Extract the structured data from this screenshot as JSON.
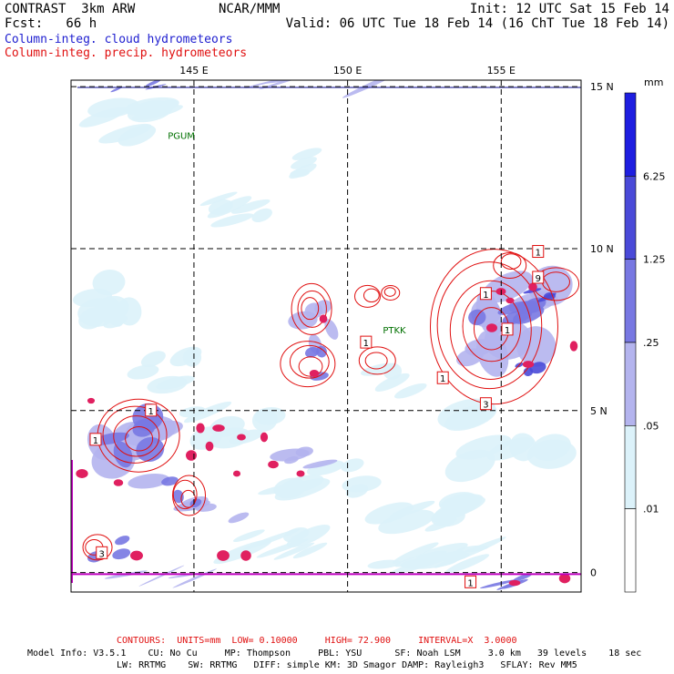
{
  "header": {
    "left_line1": "CONTRAST  3km ARW",
    "center_line1": "NCAR/MMM",
    "right_line1": "Init: 12 UTC Sat 15 Feb 14",
    "left_line2": "Fcst:   66 h",
    "right_line2": "Valid: 06 UTC Tue 18 Feb 14 (16 ChT Tue 18 Feb 14)",
    "field1": "Column-integ. cloud hydrometeors",
    "field2": "Column-integ. precip. hydrometeors"
  },
  "colors": {
    "field1_text": "#2020d0",
    "field2_text": "#e01010",
    "contour": "#e01010",
    "boundary": "#c000c0",
    "grid": "#000000",
    "station": "#007000"
  },
  "map": {
    "lon_labels": [
      "145 E",
      "150 E",
      "155 E"
    ],
    "lat_labels": [
      "15 N",
      "10 N",
      "5 N",
      "0"
    ],
    "stations": [
      {
        "name": "PGUM",
        "lon": 144.8,
        "lat": 13.5
      },
      {
        "name": "PTKK",
        "lon": 151.8,
        "lat": 7.5
      }
    ],
    "lon_range": [
      141.0,
      157.6
    ],
    "lat_range": [
      -0.6,
      15.2
    ],
    "grid_lons": [
      145,
      150,
      155
    ],
    "grid_lats": [
      15,
      10,
      5,
      0
    ],
    "contour_labels": [
      {
        "text": "1",
        "lon": 156.2,
        "lat": 9.9
      },
      {
        "text": "9",
        "lon": 156.2,
        "lat": 9.1
      },
      {
        "text": "1",
        "lon": 154.5,
        "lat": 8.6
      },
      {
        "text": "1",
        "lon": 155.2,
        "lat": 7.5
      },
      {
        "text": "1",
        "lon": 150.6,
        "lat": 7.1
      },
      {
        "text": "1",
        "lon": 153.1,
        "lat": 6.0
      },
      {
        "text": "3",
        "lon": 154.5,
        "lat": 5.2
      },
      {
        "text": "1",
        "lon": 143.6,
        "lat": 5.0
      },
      {
        "text": "1",
        "lon": 141.8,
        "lat": 4.1
      },
      {
        "text": "3",
        "lon": 142.0,
        "lat": 0.6
      },
      {
        "text": "1",
        "lon": 154.0,
        "lat": -0.3
      }
    ]
  },
  "legend": {
    "unit": "mm",
    "levels": [
      "6.25",
      "1.25",
      ".25",
      ".05",
      ".01"
    ],
    "colors": [
      "#1e1ee0",
      "#4a4ad8",
      "#7878e2",
      "#b4b4ee",
      "#dcf2fa",
      "#ffffff"
    ]
  },
  "footer": {
    "contours_label": "CONTOURS:  UNITS=mm  LOW= 0.10000     HIGH= 72.900     INTERVAL=X  3.0000",
    "line1": "Model Info: V3.5.1    CU: No Cu     MP: Thompson     PBL: YSU      SF: Noah LSM     3.0 km   39 levels    18 sec",
    "line2": "LW: RRTMG    SW: RRTMG   DIFF: simple KM: 3D Smagor DAMP: Rayleigh3   SFLAY: Rev MM5"
  }
}
